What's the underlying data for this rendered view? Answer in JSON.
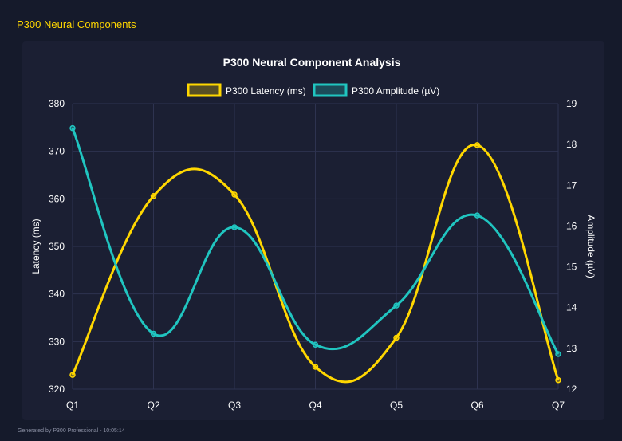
{
  "header": {
    "title": "P300 Neural Components"
  },
  "footer": {
    "text": "Generated by P300 Professional - 10:05:14"
  },
  "chart_data": {
    "type": "line",
    "title": "P300 Neural Component Analysis",
    "categories": [
      "Q1",
      "Q2",
      "Q3",
      "Q4",
      "Q5",
      "Q6",
      "Q7"
    ],
    "series": [
      {
        "name": "P300 Latency (ms)",
        "axis": "left",
        "color": "#ffd700",
        "values": [
          323,
          360.6,
          360.9,
          324.7,
          330.8,
          371.3,
          321.9
        ]
      },
      {
        "name": "P300 Amplitude (µV)",
        "axis": "right",
        "color": "#20c5c0",
        "values": [
          18.4,
          13.36,
          15.97,
          13.09,
          14.05,
          16.26,
          12.86
        ]
      }
    ],
    "ylabel": "Latency (ms)",
    "y2label": "Amplitude (µV)",
    "ylim": [
      320,
      380
    ],
    "y2lim": [
      12,
      19
    ],
    "yticks": [
      "320",
      "330",
      "340",
      "350",
      "360",
      "370",
      "380"
    ],
    "y2ticks": [
      "12",
      "13",
      "14",
      "15",
      "16",
      "17",
      "18",
      "19"
    ],
    "grid": true,
    "legend": "top"
  }
}
